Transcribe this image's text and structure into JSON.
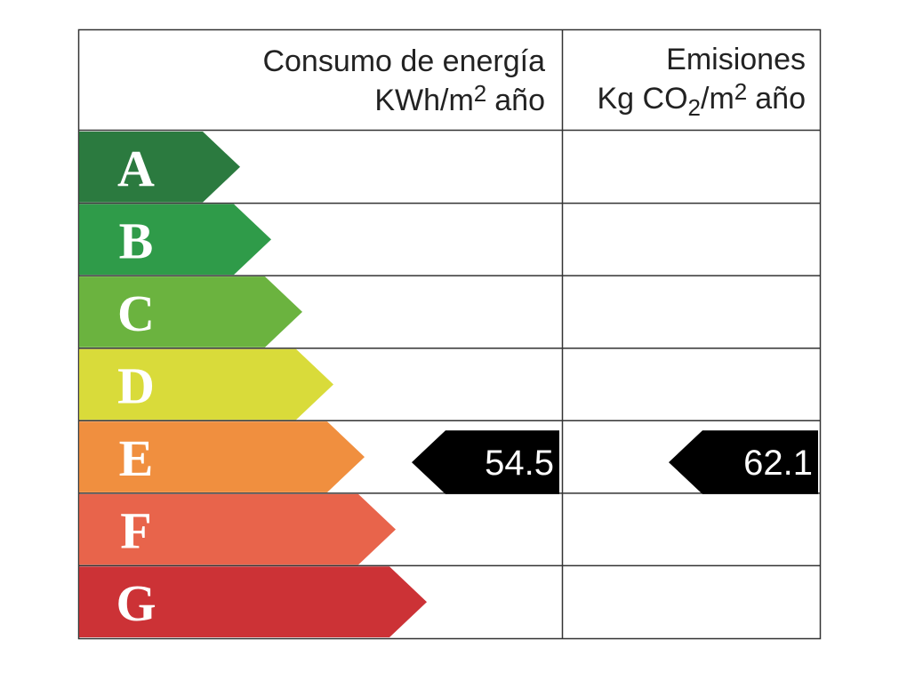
{
  "header": {
    "energy": {
      "title": "Consumo de energía",
      "unit_base": "KWh/m",
      "unit_exponent": "2",
      "unit_suffix": "año"
    },
    "emissions": {
      "title": "Emisiones",
      "unit_base": "Kg CO",
      "unit_subscript": "2",
      "unit_per": "/m",
      "unit_exponent": "2",
      "unit_suffix": "año"
    }
  },
  "rows": [
    {
      "letter": "A",
      "color": "#2b7a3f"
    },
    {
      "letter": "B",
      "color": "#2f9b49"
    },
    {
      "letter": "C",
      "color": "#6bb33f"
    },
    {
      "letter": "D",
      "color": "#d9db3a"
    },
    {
      "letter": "E",
      "color": "#f08f3f",
      "energy": 54.5,
      "emissions": 62.1
    },
    {
      "letter": "F",
      "color": "#e8644b"
    },
    {
      "letter": "G",
      "color": "#cc3236"
    }
  ]
}
